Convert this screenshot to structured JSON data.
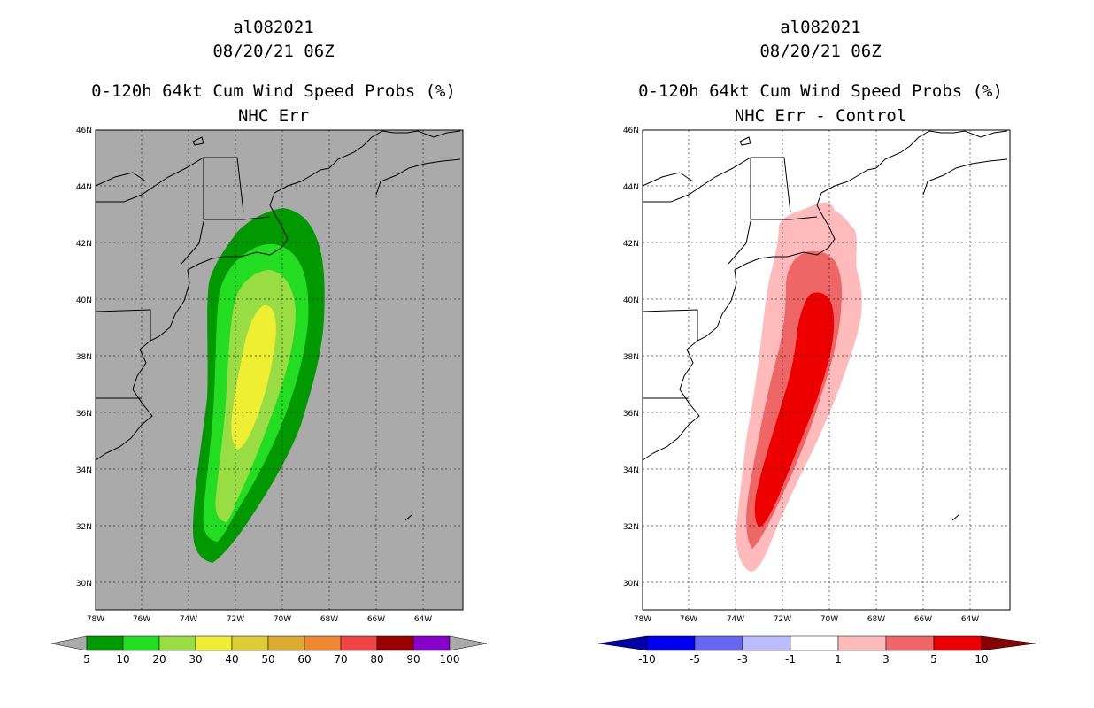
{
  "panels": [
    {
      "storm_id": "al082021",
      "datetime": "08/20/21 06Z",
      "title": "0-120h 64kt Cum Wind Speed Probs (%)",
      "subtitle": "NHC Err",
      "lat_labels": [
        "46N",
        "44N",
        "42N",
        "40N",
        "38N",
        "36N",
        "34N",
        "32N",
        "30N"
      ],
      "lon_labels": [
        "78W",
        "76W",
        "74W",
        "72W",
        "70W",
        "68W",
        "66W",
        "64W"
      ],
      "colorbar": {
        "labels": [
          "5",
          "10",
          "20",
          "30",
          "40",
          "50",
          "60",
          "70",
          "80",
          "90",
          "100"
        ],
        "colors": [
          "#009900",
          "#22dd22",
          "#99dd44",
          "#eeee33",
          "#ddcc33",
          "#ddaa33",
          "#ee8833",
          "#ee4444",
          "#990000",
          "#8800cc"
        ],
        "end_color": "#aaaaaa"
      },
      "map_background": "#aaaaaa"
    },
    {
      "storm_id": "al082021",
      "datetime": "08/20/21 06Z",
      "title": "0-120h 64kt Cum Wind Speed Probs (%)",
      "subtitle": "NHC Err - Control",
      "lat_labels": [
        "46N",
        "44N",
        "42N",
        "40N",
        "38N",
        "36N",
        "34N",
        "32N",
        "30N"
      ],
      "lon_labels": [
        "78W",
        "76W",
        "74W",
        "72W",
        "70W",
        "68W",
        "66W",
        "64W"
      ],
      "colorbar": {
        "labels": [
          "-10",
          "-5",
          "-3",
          "-1",
          "1",
          "3",
          "5",
          "10"
        ],
        "colors": [
          "#0000ee",
          "#6666ee",
          "#bbbbff",
          "#ffffff",
          "#ffbbbb",
          "#ee6666",
          "#ee0000"
        ],
        "low_end_color": "#0000aa",
        "high_end_color": "#880000"
      },
      "map_background": "#ffffff"
    }
  ]
}
